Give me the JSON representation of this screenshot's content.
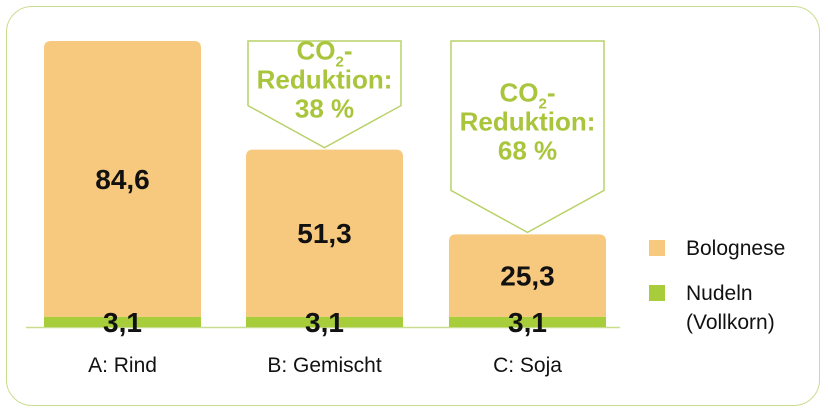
{
  "chart_data": {
    "type": "bar",
    "stacked": true,
    "categories": [
      "A: Rind",
      "B: Gemischt",
      "C: Soja"
    ],
    "series": [
      {
        "name": "Nudeln (Vollkorn)",
        "values": [
          3.1,
          3.1,
          3.1
        ],
        "labels": [
          "3,1",
          "3,1",
          "3,1"
        ],
        "color": "#a8cd3a"
      },
      {
        "name": "Bolognese",
        "values": [
          84.6,
          51.3,
          25.3
        ],
        "labels": [
          "84,6",
          "51,3",
          "25,3"
        ],
        "color": "#f7c97e"
      }
    ],
    "legend": {
      "position": "right",
      "items": [
        {
          "lines": [
            "Bolognese"
          ],
          "color": "#f7c97e"
        },
        {
          "lines": [
            "Nudeln",
            "(Vollkorn)"
          ],
          "color": "#a8cd3a"
        }
      ]
    },
    "annotations": [
      {
        "category": "B: Gemischt",
        "lines": [
          "CO",
          "2",
          "-",
          "Reduktion:",
          "38 %"
        ]
      },
      {
        "category": "C: Soja",
        "lines": [
          "CO",
          "2",
          "-",
          "Reduktion:",
          "68 %"
        ]
      }
    ],
    "colors": {
      "frame": "#c9dd8e",
      "callout": "#a9c53c",
      "callout_border": "#b9d26a"
    }
  }
}
